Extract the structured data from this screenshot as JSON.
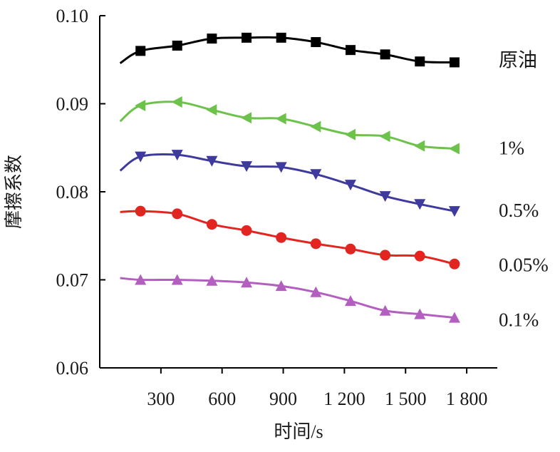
{
  "chart_data": {
    "type": "line",
    "xlabel": "时间/s",
    "ylabel": "摩擦系数",
    "xlim": [
      0,
      1950
    ],
    "ylim": [
      0.06,
      0.1
    ],
    "xticks": [
      300,
      600,
      900,
      1200,
      1500,
      1800
    ],
    "xtick_labels": [
      "300",
      "600",
      "900",
      "1 200",
      "1 500",
      "1 800"
    ],
    "yticks": [
      0.06,
      0.07,
      0.08,
      0.09,
      0.1
    ],
    "ytick_labels": [
      "0.06",
      "0.07",
      "0.08",
      "0.09",
      "0.10"
    ],
    "grid": false,
    "legend": "inline labels at right end of each line",
    "x": [
      100,
      200,
      380,
      550,
      720,
      890,
      1060,
      1230,
      1400,
      1570,
      1740
    ],
    "series": [
      {
        "name": "原油",
        "color": "#000000",
        "marker": "square",
        "values": [
          0.0946,
          0.096,
          0.0966,
          0.0974,
          0.0975,
          0.0975,
          0.097,
          0.0961,
          0.0956,
          0.0948,
          0.0947
        ]
      },
      {
        "name": "1%",
        "color": "#6cc24a",
        "marker": "triangle-left",
        "values": [
          0.088,
          0.0898,
          0.0902,
          0.0893,
          0.0884,
          0.0883,
          0.0874,
          0.0865,
          0.0863,
          0.0852,
          0.0849
        ]
      },
      {
        "name": "0.5%",
        "color": "#3e3a9e",
        "marker": "triangle-down",
        "values": [
          0.0824,
          0.084,
          0.0842,
          0.0835,
          0.0829,
          0.0828,
          0.082,
          0.0808,
          0.0795,
          0.0786,
          0.0778
        ]
      },
      {
        "name": "0.05%",
        "color": "#e32522",
        "marker": "circle",
        "values": [
          0.0777,
          0.0778,
          0.0775,
          0.0763,
          0.0756,
          0.0748,
          0.0741,
          0.0735,
          0.0728,
          0.0727,
          0.0718
        ]
      },
      {
        "name": "0.1%",
        "color": "#b35fbf",
        "marker": "triangle-up",
        "values": [
          0.0702,
          0.07,
          0.07,
          0.0699,
          0.0697,
          0.0693,
          0.0686,
          0.0676,
          0.0665,
          0.0661,
          0.0657
        ]
      }
    ]
  }
}
